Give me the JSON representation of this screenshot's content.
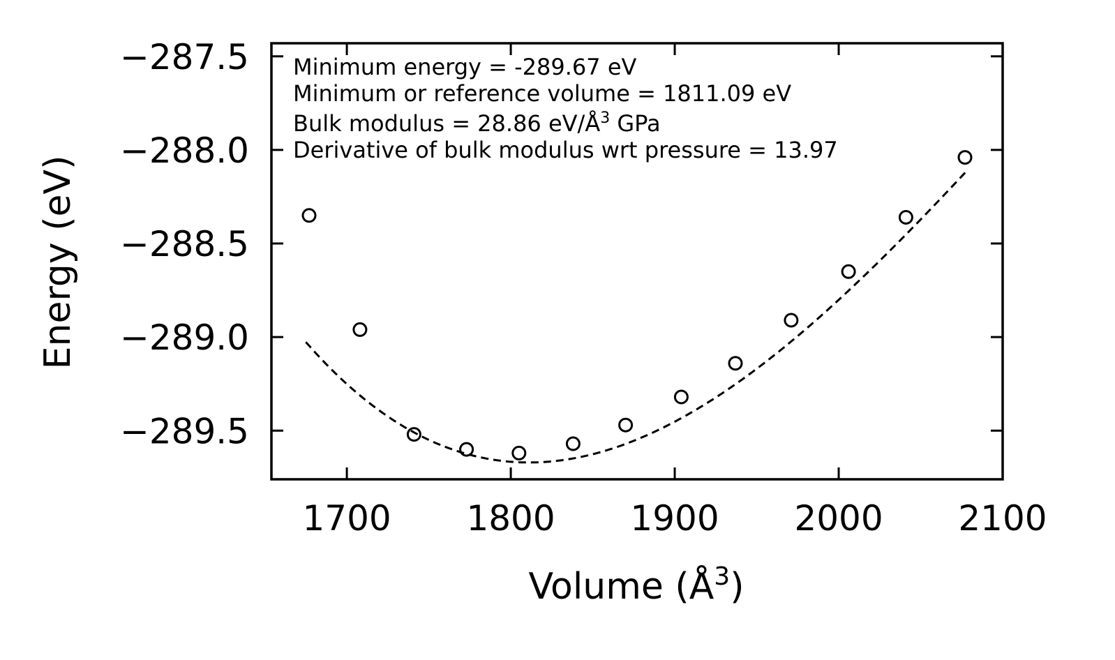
{
  "chart_data": {
    "type": "scatter",
    "title": "",
    "xlabel": "Volume (Å",
    "xlabel_sup": "3",
    "xlabel_close": ")",
    "ylabel": "Energy (eV)",
    "xlim": [
      1654,
      2100
    ],
    "ylim": [
      -289.76,
      -287.43
    ],
    "xticks": [
      1700,
      1800,
      1900,
      2000,
      2100
    ],
    "xtick_labels": [
      "1700",
      "1800",
      "1900",
      "2000",
      "2100"
    ],
    "yticks": [
      -287.5,
      -288.0,
      -288.5,
      -289.0,
      -289.5
    ],
    "ytick_labels": [
      "−287.5",
      "−288.0",
      "−288.5",
      "−289.0",
      "−289.5"
    ],
    "series": [
      {
        "name": "data",
        "marker": "open-circle",
        "x": [
          1677,
          1708,
          1741,
          1773,
          1805,
          1838,
          1870,
          1904,
          1937,
          1971,
          2006,
          2041,
          2077
        ],
        "y": [
          -288.35,
          -288.96,
          -289.52,
          -289.6,
          -289.62,
          -289.57,
          -289.47,
          -289.32,
          -289.14,
          -288.91,
          -288.65,
          -288.36,
          -288.04
        ]
      },
      {
        "name": "fit",
        "style": "dashed",
        "E0": -289.67,
        "V0": 1811.09,
        "x_range": [
          1675,
          2080
        ]
      }
    ],
    "annotations": {
      "line1": "Minimum energy = -289.67 eV",
      "line2": "Minimum or reference volume = 1811.09 eV",
      "line3_pre": "Bulk modulus = 28.86 eV/Å",
      "line3_sup": "3",
      "line3_post": " GPa",
      "line4": "Derivative of bulk modulus wrt pressure = 13.97"
    }
  }
}
